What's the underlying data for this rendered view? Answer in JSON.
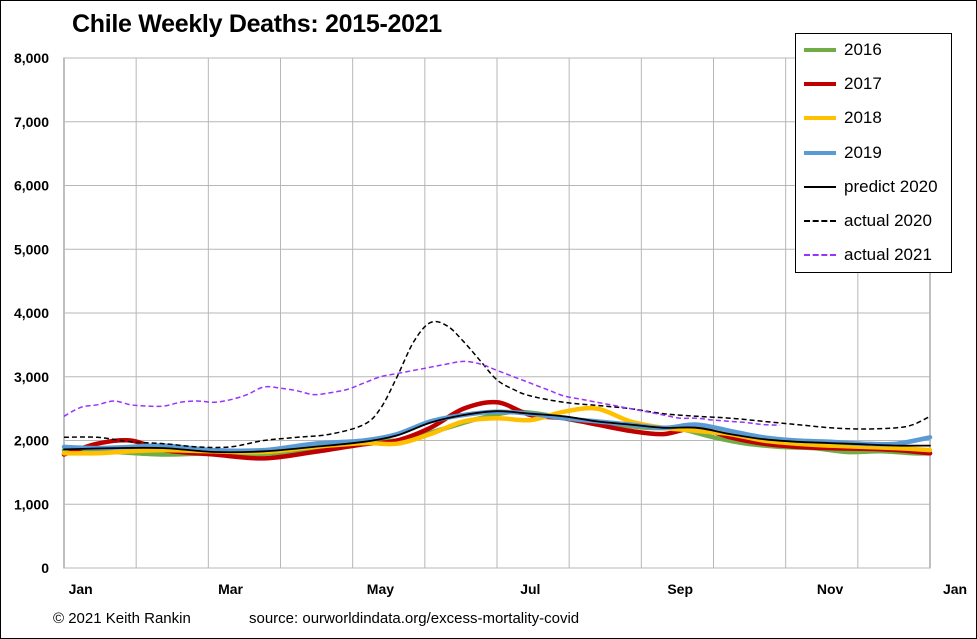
{
  "chart_data": {
    "type": "line",
    "title": "Chile Weekly Deaths: 2015-2021",
    "xlabel": "",
    "ylabel": "",
    "ylim": [
      0,
      8000
    ],
    "yticks": [
      0,
      1000,
      2000,
      3000,
      4000,
      5000,
      6000,
      7000,
      8000
    ],
    "ytick_labels": [
      "0",
      "1,000",
      "2,000",
      "3,000",
      "4,000",
      "5,000",
      "6,000",
      "7,000",
      "8,000"
    ],
    "xlim": [
      1,
      53
    ],
    "xtick_labels": [
      {
        "label": "Jan",
        "week": 2
      },
      {
        "label": "Mar",
        "week": 11
      },
      {
        "label": "May",
        "week": 20
      },
      {
        "label": "Jul",
        "week": 29
      },
      {
        "label": "Sep",
        "week": 38
      },
      {
        "label": "Nov",
        "week": 47
      },
      {
        "label": "Jan",
        "week": 55
      }
    ],
    "grid": true,
    "legend_position": "top-right",
    "series": [
      {
        "name": "2016",
        "color": "#70ad47",
        "width": 4.5,
        "dash": "",
        "x": [
          1,
          4,
          7,
          10,
          13,
          16,
          19,
          21,
          22,
          24,
          26,
          28,
          30,
          32,
          34,
          36,
          38,
          40,
          42,
          44,
          46,
          48,
          50,
          52,
          53
        ],
        "y": [
          1850,
          1820,
          1780,
          1800,
          1790,
          1870,
          1980,
          2000,
          2050,
          2200,
          2350,
          2450,
          2400,
          2300,
          2250,
          2200,
          2180,
          2050,
          1950,
          1900,
          1880,
          1820,
          1830,
          1800,
          1800
        ]
      },
      {
        "name": "2017",
        "color": "#c00000",
        "width": 4.5,
        "dash": "",
        "x": [
          1,
          3,
          5,
          7,
          10,
          13,
          16,
          19,
          21,
          23,
          25,
          27,
          29,
          31,
          33,
          35,
          37,
          39,
          41,
          43,
          45,
          47,
          49,
          51,
          53
        ],
        "y": [
          1780,
          1950,
          2000,
          1850,
          1780,
          1720,
          1820,
          1940,
          2000,
          2200,
          2500,
          2600,
          2400,
          2350,
          2250,
          2150,
          2100,
          2200,
          2050,
          1950,
          1900,
          1880,
          1870,
          1850,
          1800
        ]
      },
      {
        "name": "2018",
        "color": "#ffc000",
        "width": 4.5,
        "dash": "",
        "x": [
          1,
          3,
          5,
          7,
          10,
          13,
          16,
          19,
          21,
          23,
          25,
          27,
          29,
          31,
          33,
          35,
          37,
          39,
          41,
          43,
          45,
          47,
          49,
          51,
          53
        ],
        "y": [
          1800,
          1800,
          1830,
          1850,
          1830,
          1820,
          1900,
          1960,
          1950,
          2100,
          2300,
          2350,
          2320,
          2450,
          2500,
          2300,
          2200,
          2150,
          2100,
          2000,
          1950,
          1920,
          1900,
          1880,
          1850
        ]
      },
      {
        "name": "2019",
        "color": "#5b9bd5",
        "width": 4.5,
        "dash": "",
        "x": [
          1,
          3,
          5,
          7,
          10,
          13,
          16,
          19,
          21,
          23,
          25,
          27,
          29,
          31,
          33,
          35,
          37,
          39,
          41,
          43,
          45,
          47,
          49,
          51,
          53
        ],
        "y": [
          1900,
          1880,
          1900,
          1920,
          1850,
          1850,
          1950,
          2000,
          2100,
          2300,
          2400,
          2450,
          2420,
          2350,
          2300,
          2250,
          2200,
          2250,
          2150,
          2050,
          2000,
          1980,
          1950,
          1950,
          2050
        ]
      },
      {
        "name": "predict 2020",
        "color": "#000000",
        "width": 1.8,
        "dash": "",
        "x": [
          1,
          4,
          7,
          10,
          13,
          16,
          19,
          21,
          23,
          25,
          27,
          29,
          31,
          33,
          35,
          37,
          39,
          41,
          43,
          45,
          47,
          49,
          51,
          53
        ],
        "y": [
          1860,
          1880,
          1880,
          1820,
          1830,
          1900,
          1980,
          2080,
          2280,
          2400,
          2460,
          2420,
          2380,
          2300,
          2250,
          2200,
          2200,
          2100,
          2020,
          1980,
          1960,
          1940,
          1920,
          1920
        ]
      },
      {
        "name": "actual 2020",
        "color": "#000000",
        "width": 1.5,
        "dash": "5,3",
        "x": [
          1,
          3,
          5,
          7,
          9,
          11,
          13,
          15,
          17,
          19,
          20,
          21,
          22,
          23,
          24,
          25,
          26,
          27,
          28,
          29,
          31,
          33,
          35,
          37,
          39,
          41,
          43,
          45,
          47,
          49,
          51,
          52,
          53
        ],
        "y": [
          2050,
          2050,
          1980,
          1950,
          1900,
          1900,
          2000,
          2050,
          2100,
          2250,
          2500,
          3000,
          3550,
          3850,
          3800,
          3550,
          3250,
          2950,
          2800,
          2700,
          2600,
          2550,
          2500,
          2420,
          2380,
          2350,
          2300,
          2250,
          2200,
          2180,
          2200,
          2250,
          2380
        ]
      },
      {
        "name": "actual 2021",
        "color": "#9933ff",
        "width": 1.5,
        "dash": "5,3",
        "x": [
          1,
          2,
          3,
          4,
          5,
          6,
          7,
          8,
          9,
          10,
          11,
          12,
          13,
          14,
          15,
          16,
          17,
          18,
          19,
          20,
          21,
          22,
          23,
          24,
          25,
          26,
          27,
          28,
          29,
          30,
          31,
          32,
          33,
          34,
          35,
          36,
          37,
          38,
          39,
          40,
          41,
          42,
          43,
          44
        ],
        "y": [
          2380,
          2520,
          2560,
          2620,
          2560,
          2540,
          2540,
          2600,
          2620,
          2600,
          2640,
          2720,
          2840,
          2820,
          2780,
          2720,
          2750,
          2800,
          2900,
          3000,
          3050,
          3100,
          3150,
          3200,
          3240,
          3200,
          3100,
          3000,
          2900,
          2800,
          2700,
          2650,
          2600,
          2550,
          2500,
          2450,
          2400,
          2350,
          2350,
          2320,
          2300,
          2280,
          2250,
          2240
        ]
      }
    ]
  },
  "footer": {
    "copyright": "© 2021 Keith Rankin",
    "source": "source:  ourworldindata.org/excess-mortality-covid"
  }
}
